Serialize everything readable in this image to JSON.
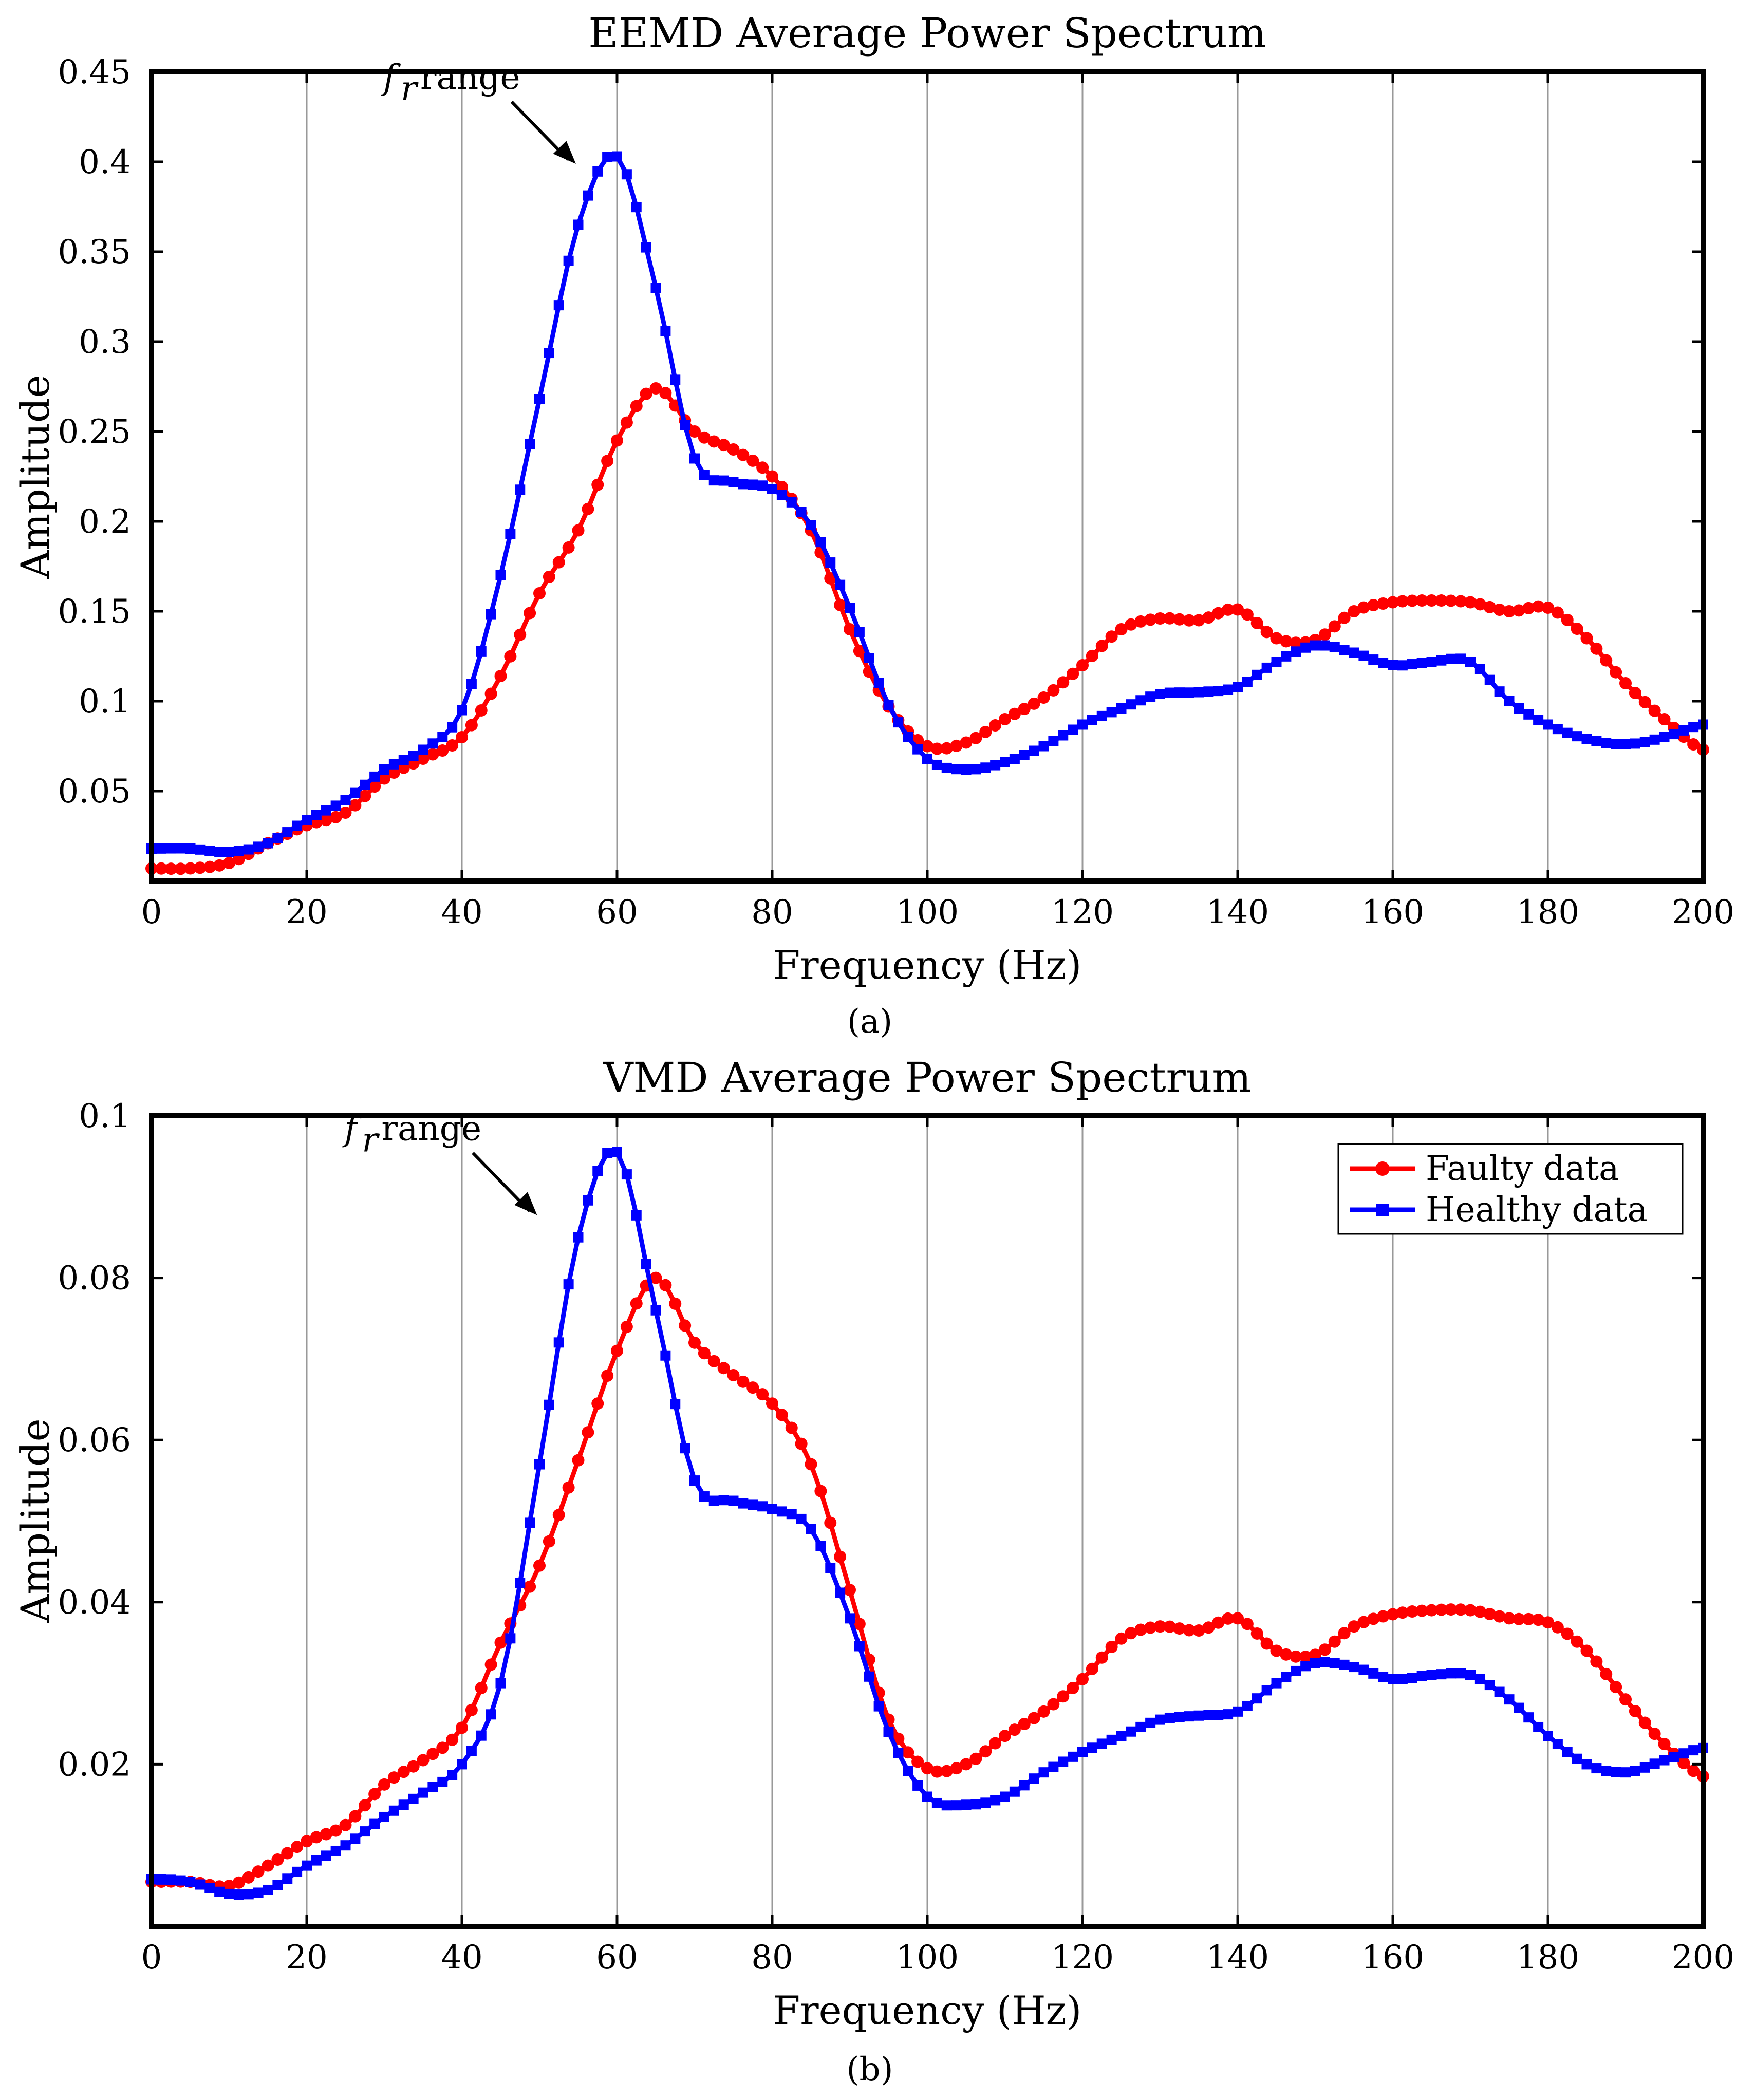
{
  "chart_data": [
    {
      "type": "line",
      "title": "EEMD Average Power Spectrum",
      "xlabel": "Frequency (Hz)",
      "ylabel": "Amplitude",
      "caption": "(a)",
      "xlim": [
        0,
        200
      ],
      "ylim": [
        0,
        0.45
      ],
      "xticks": [
        "0",
        "20",
        "40",
        "60",
        "80",
        "100",
        "120",
        "140",
        "160",
        "180",
        "200"
      ],
      "yticks": [
        "0.05",
        "0.1",
        "0.15",
        "0.2",
        "0.25",
        "0.3",
        "0.35",
        "0.4",
        "0.45"
      ],
      "ytick_values": [
        0.05,
        0.1,
        0.15,
        0.2,
        0.25,
        0.3,
        0.35,
        0.4,
        0.45
      ],
      "grid": "vertical",
      "annotation": {
        "text_f": "f",
        "text_sub": "r",
        "text_rest": "range",
        "x": 59,
        "y": 0.4
      },
      "series": [
        {
          "name": "Faulty data",
          "color": "#ff0000",
          "marker": "circle",
          "x": [
            0,
            5,
            10,
            15,
            20,
            25,
            30,
            35,
            40,
            45,
            50,
            55,
            60,
            65,
            70,
            75,
            80,
            85,
            90,
            95,
            100,
            105,
            110,
            115,
            120,
            125,
            130,
            135,
            140,
            145,
            150,
            155,
            160,
            165,
            170,
            175,
            180,
            185,
            190,
            195,
            200
          ],
          "y": [
            0.007,
            0.007,
            0.01,
            0.021,
            0.031,
            0.038,
            0.057,
            0.068,
            0.08,
            0.114,
            0.16,
            0.195,
            0.245,
            0.274,
            0.25,
            0.24,
            0.225,
            0.195,
            0.14,
            0.097,
            0.075,
            0.077,
            0.09,
            0.102,
            0.12,
            0.14,
            0.146,
            0.145,
            0.151,
            0.135,
            0.134,
            0.15,
            0.155,
            0.156,
            0.155,
            0.15,
            0.152,
            0.135,
            0.11,
            0.09,
            0.073
          ]
        },
        {
          "name": "Healthy data",
          "color": "#0000ff",
          "marker": "square",
          "x": [
            0,
            5,
            10,
            15,
            20,
            25,
            30,
            35,
            40,
            45,
            50,
            55,
            60,
            65,
            70,
            75,
            80,
            85,
            90,
            95,
            100,
            105,
            110,
            115,
            120,
            125,
            130,
            135,
            140,
            145,
            150,
            155,
            160,
            165,
            170,
            175,
            180,
            185,
            190,
            195,
            200
          ],
          "y": [
            0.018,
            0.018,
            0.016,
            0.021,
            0.034,
            0.045,
            0.062,
            0.073,
            0.095,
            0.17,
            0.268,
            0.365,
            0.403,
            0.33,
            0.235,
            0.222,
            0.218,
            0.198,
            0.152,
            0.098,
            0.068,
            0.062,
            0.066,
            0.075,
            0.087,
            0.096,
            0.104,
            0.105,
            0.108,
            0.122,
            0.131,
            0.127,
            0.12,
            0.122,
            0.122,
            0.1,
            0.087,
            0.079,
            0.076,
            0.08,
            0.087
          ]
        }
      ]
    },
    {
      "type": "line",
      "title": "VMD Average Power Spectrum",
      "xlabel": "Frequency (Hz)",
      "ylabel": "Amplitude",
      "caption": "(b)",
      "xlim": [
        0,
        200
      ],
      "ylim": [
        0,
        0.1
      ],
      "xticks": [
        "0",
        "20",
        "40",
        "60",
        "80",
        "100",
        "120",
        "140",
        "160",
        "180",
        "200"
      ],
      "yticks": [
        "0.02",
        "0.04",
        "0.06",
        "0.08",
        "0.1"
      ],
      "ytick_values": [
        0.02,
        0.04,
        0.06,
        0.08,
        0.1
      ],
      "grid": "vertical",
      "legend": "top-right",
      "annotation": {
        "text_f": "f",
        "text_sub": "r",
        "text_rest": "range",
        "x": 54,
        "y": 0.088
      },
      "series": [
        {
          "name": "Faulty data",
          "color": "#ff0000",
          "marker": "circle",
          "x": [
            0,
            5,
            10,
            15,
            20,
            25,
            30,
            35,
            40,
            45,
            50,
            55,
            60,
            65,
            70,
            75,
            80,
            85,
            90,
            95,
            100,
            105,
            110,
            115,
            120,
            125,
            130,
            135,
            140,
            145,
            150,
            155,
            160,
            165,
            170,
            175,
            180,
            185,
            190,
            195,
            200
          ],
          "y": [
            0.0055,
            0.0055,
            0.005,
            0.0075,
            0.0105,
            0.0125,
            0.0175,
            0.0205,
            0.0245,
            0.035,
            0.0445,
            0.0575,
            0.071,
            0.08,
            0.072,
            0.068,
            0.0645,
            0.057,
            0.0415,
            0.0255,
            0.0195,
            0.02,
            0.0235,
            0.0265,
            0.0305,
            0.0355,
            0.037,
            0.0365,
            0.038,
            0.034,
            0.0335,
            0.037,
            0.0385,
            0.039,
            0.039,
            0.038,
            0.0375,
            0.034,
            0.028,
            0.0225,
            0.0185
          ]
        },
        {
          "name": "Healthy data",
          "color": "#0000ff",
          "marker": "square",
          "x": [
            0,
            5,
            10,
            15,
            20,
            25,
            30,
            35,
            40,
            45,
            50,
            55,
            60,
            65,
            70,
            75,
            80,
            85,
            90,
            95,
            100,
            105,
            110,
            115,
            120,
            125,
            130,
            135,
            140,
            145,
            150,
            155,
            160,
            165,
            170,
            175,
            180,
            185,
            190,
            195,
            200
          ],
          "y": [
            0.0058,
            0.0055,
            0.004,
            0.0045,
            0.0075,
            0.01,
            0.0135,
            0.0165,
            0.02,
            0.03,
            0.057,
            0.085,
            0.0955,
            0.076,
            0.055,
            0.0525,
            0.0515,
            0.049,
            0.038,
            0.024,
            0.016,
            0.015,
            0.016,
            0.019,
            0.0215,
            0.0235,
            0.0255,
            0.026,
            0.0265,
            0.03,
            0.0325,
            0.032,
            0.0305,
            0.031,
            0.031,
            0.028,
            0.0235,
            0.02,
            0.019,
            0.0205,
            0.022
          ]
        }
      ]
    }
  ]
}
